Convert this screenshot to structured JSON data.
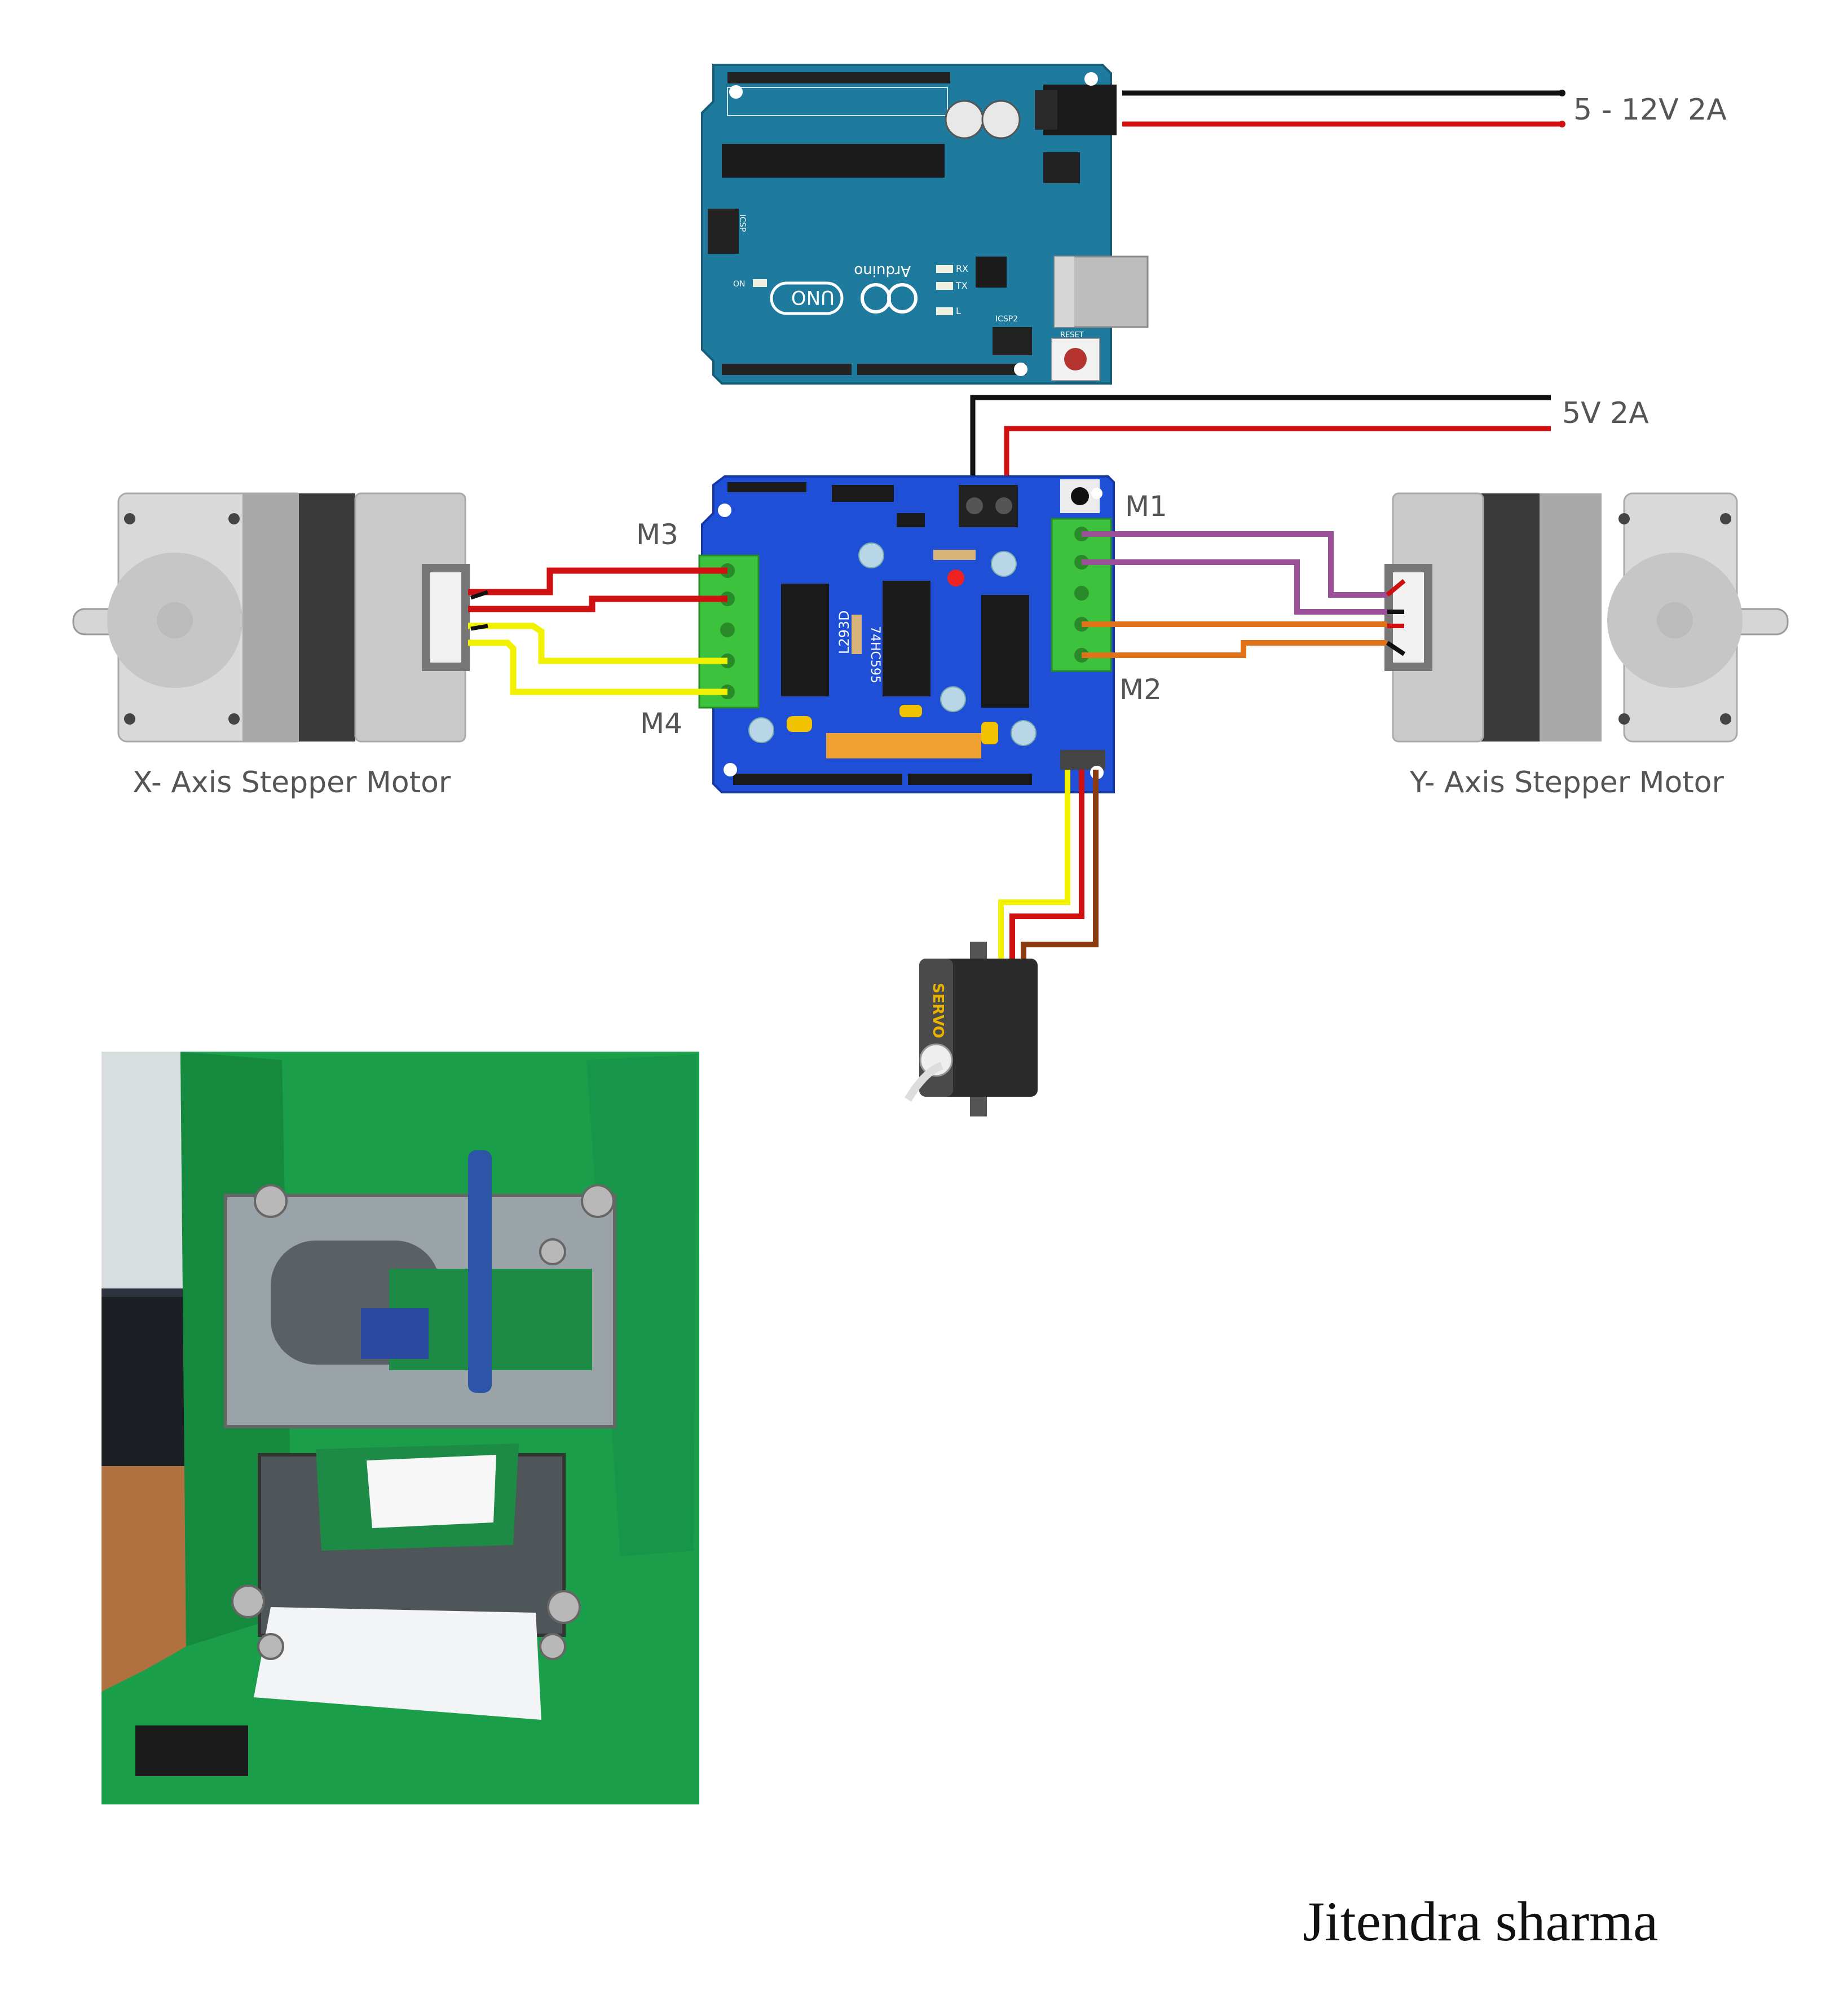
{
  "diagram": {
    "power_main_label": "5 - 12V 2A",
    "power_shield_label": "5V 2A",
    "ports": {
      "m1": "M1",
      "m2": "M2",
      "m3": "M3",
      "m4": "M4"
    },
    "x_motor_label": "X- Axis Stepper Motor",
    "y_motor_label": "Y- Axis Stepper Motor",
    "arduino": {
      "brand": "Arduino",
      "model": "UNO",
      "on": "ON",
      "rx": "RX",
      "tx": "TX",
      "l": "L",
      "icsp": "ICSP",
      "icsp2": "ICSP2",
      "reset": "RESET"
    },
    "shield": {
      "chip1": "L293D",
      "chip2": "74HC595"
    },
    "servo": {
      "label": "SERVO"
    }
  },
  "photo": {
    "description_icon": "plotter-photo"
  },
  "author": "Jitendra sharma",
  "colors": {
    "arduino_blue": "#1e7b9e",
    "shield_blue": "#1f4fd6",
    "terminal_green": "#3cc23c",
    "wire_red": "#d01010",
    "wire_black": "#111111",
    "wire_yellow": "#f2f200",
    "wire_purple": "#9b4f96",
    "wire_orange": "#e0731a",
    "wire_brown": "#8a3b12",
    "photo_green": "#1a9e4a"
  }
}
